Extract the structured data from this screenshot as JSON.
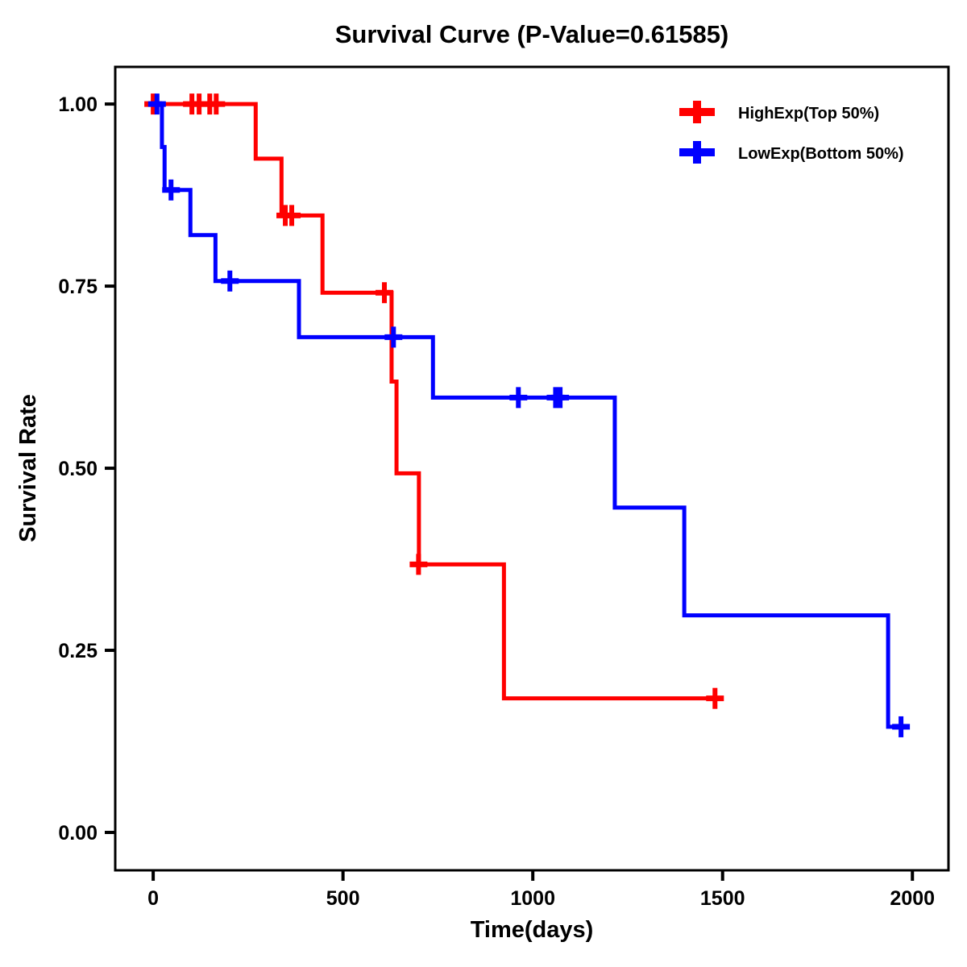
{
  "page": {
    "background_color": "#ffffff",
    "text_color": "#000000"
  },
  "chart_data": {
    "type": "line",
    "subtype": "kaplan-meier-step-curve",
    "title": "Survival Curve (P-Value=0.61585)",
    "p_value": "0.61585",
    "xlabel": "Time(days)",
    "ylabel": "Survival Rate",
    "grid": false,
    "legend_position": "top-right-inside",
    "axis_color": "#000000",
    "xlim": [
      -100,
      2095
    ],
    "ylim": [
      -0.052,
      1.051
    ],
    "x_ticks": [
      {
        "value": 0,
        "label": "0"
      },
      {
        "value": 500,
        "label": "500"
      },
      {
        "value": 1000,
        "label": "1000"
      },
      {
        "value": 1500,
        "label": "1500"
      },
      {
        "value": 2000,
        "label": "2000"
      }
    ],
    "y_ticks": [
      {
        "value": 0.0,
        "label": "0.00"
      },
      {
        "value": 0.25,
        "label": "0.25"
      },
      {
        "value": 0.5,
        "label": "0.50"
      },
      {
        "value": 0.75,
        "label": "0.75"
      },
      {
        "value": 1.0,
        "label": "1.00"
      }
    ],
    "series": [
      {
        "name": "HighExp(Top 50%)",
        "color": "#FF0000",
        "points": [
          [
            0,
            1.0
          ],
          [
            270,
            0.925
          ],
          [
            338,
            0.847
          ],
          [
            446,
            0.741
          ],
          [
            628,
            0.619
          ],
          [
            641,
            0.493
          ],
          [
            700,
            0.368
          ],
          [
            924,
            0.184
          ]
        ],
        "end_time": 1487,
        "censors": [
          [
            0,
            1.0
          ],
          [
            102,
            1.0
          ],
          [
            121,
            1.0
          ],
          [
            149,
            1.0
          ],
          [
            166,
            1.0
          ],
          [
            348,
            0.847
          ],
          [
            365,
            0.847
          ],
          [
            609,
            0.741
          ],
          [
            699,
            0.368
          ],
          [
            1480,
            0.184
          ]
        ]
      },
      {
        "name": "LowExp(Bottom 50%)",
        "color": "#0000FF",
        "points": [
          [
            0,
            1.0
          ],
          [
            23,
            0.941
          ],
          [
            30,
            0.882
          ],
          [
            98,
            0.82
          ],
          [
            164,
            0.757
          ],
          [
            384,
            0.68
          ],
          [
            737,
            0.597
          ],
          [
            1216,
            0.446
          ],
          [
            1399,
            0.298
          ],
          [
            1936,
            0.145
          ]
        ],
        "end_time": 1985,
        "censors": [
          [
            10,
            1.0
          ],
          [
            47,
            0.882
          ],
          [
            202,
            0.757
          ],
          [
            633,
            0.68
          ],
          [
            962,
            0.597
          ],
          [
            1060,
            0.597
          ],
          [
            1072,
            0.597
          ],
          [
            1970,
            0.145
          ]
        ]
      }
    ]
  }
}
